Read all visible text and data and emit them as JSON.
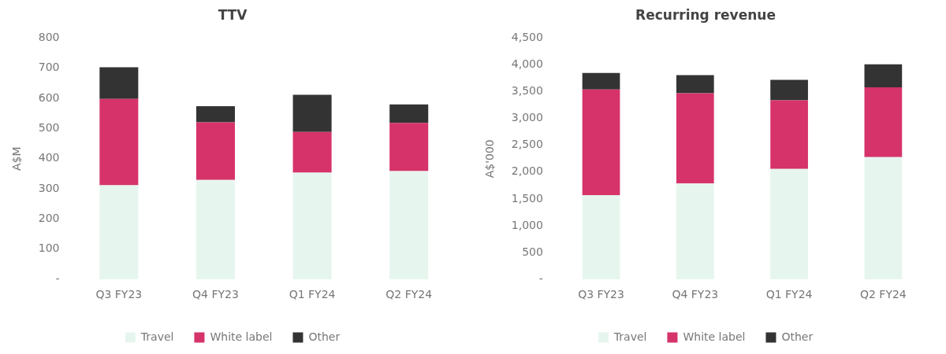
{
  "chart_data": [
    {
      "type": "bar",
      "title": "TTV",
      "ylabel": "A$M",
      "stacked": true,
      "categories": [
        "Q3 FY23",
        "Q4 FY23",
        "Q1 FY24",
        "Q2 FY24"
      ],
      "series": [
        {
          "name": "Travel",
          "color": "#e6f6ee",
          "values": [
            312,
            330,
            354,
            359
          ]
        },
        {
          "name": "White label",
          "color": "#d6336a",
          "values": [
            286,
            191,
            135,
            160
          ]
        },
        {
          "name": "Other",
          "color": "#333333",
          "values": [
            105,
            53,
            123,
            61
          ]
        }
      ],
      "ylim": [
        0,
        800
      ],
      "yticks": [
        {
          "value": 0,
          "label": "-"
        },
        100,
        200,
        300,
        400,
        500,
        600,
        700,
        800
      ],
      "grid": false,
      "legend": "bottom"
    },
    {
      "type": "bar",
      "title": "Recurring revenue",
      "ylabel": "A$'000",
      "stacked": true,
      "categories": [
        "Q3 FY23",
        "Q4 FY23",
        "Q1 FY24",
        "Q2 FY24"
      ],
      "series": [
        {
          "name": "Travel",
          "color": "#e6f6ee",
          "values": [
            1570,
            1790,
            2060,
            2280
          ]
        },
        {
          "name": "White label",
          "color": "#d6336a",
          "values": [
            1970,
            1680,
            1280,
            1300
          ]
        },
        {
          "name": "Other",
          "color": "#333333",
          "values": [
            310,
            340,
            380,
            430
          ]
        }
      ],
      "ylim": [
        0,
        4500
      ],
      "yticks": [
        {
          "value": 0,
          "label": "-"
        },
        {
          "value": 500,
          "label": "500"
        },
        {
          "value": 1000,
          "label": "1,000"
        },
        {
          "value": 1500,
          "label": "1,500"
        },
        {
          "value": 2000,
          "label": "2,000"
        },
        {
          "value": 2500,
          "label": "2,500"
        },
        {
          "value": 3000,
          "label": "3,000"
        },
        {
          "value": 3500,
          "label": "3,500"
        },
        {
          "value": 4000,
          "label": "4,000"
        },
        {
          "value": 4500,
          "label": "4,500"
        }
      ],
      "grid": false,
      "legend": "bottom"
    }
  ]
}
